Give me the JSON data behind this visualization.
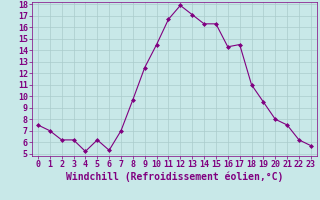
{
  "x": [
    0,
    1,
    2,
    3,
    4,
    5,
    6,
    7,
    8,
    9,
    10,
    11,
    12,
    13,
    14,
    15,
    16,
    17,
    18,
    19,
    20,
    21,
    22,
    23
  ],
  "y": [
    7.5,
    7.0,
    6.2,
    6.2,
    5.2,
    6.2,
    5.3,
    7.0,
    9.7,
    12.5,
    14.5,
    16.7,
    17.9,
    17.1,
    16.3,
    16.3,
    14.3,
    14.5,
    11.0,
    9.5,
    8.0,
    7.5,
    6.2,
    5.7
  ],
  "line_color": "#800080",
  "marker": "D",
  "marker_size": 2,
  "bg_color": "#c8e8e8",
  "grid_color": "#aacccc",
  "xlabel": "Windchill (Refroidissement éolien,°C)",
  "ylim_min": 5,
  "ylim_max": 18,
  "xlim_min": 0,
  "xlim_max": 23,
  "yticks": [
    5,
    6,
    7,
    8,
    9,
    10,
    11,
    12,
    13,
    14,
    15,
    16,
    17,
    18
  ],
  "xticks": [
    0,
    1,
    2,
    3,
    4,
    5,
    6,
    7,
    8,
    9,
    10,
    11,
    12,
    13,
    14,
    15,
    16,
    17,
    18,
    19,
    20,
    21,
    22,
    23
  ],
  "tick_color": "#800080",
  "label_color": "#800080",
  "axis_color": "#800080",
  "font_size": 6,
  "xlabel_fontsize": 7
}
